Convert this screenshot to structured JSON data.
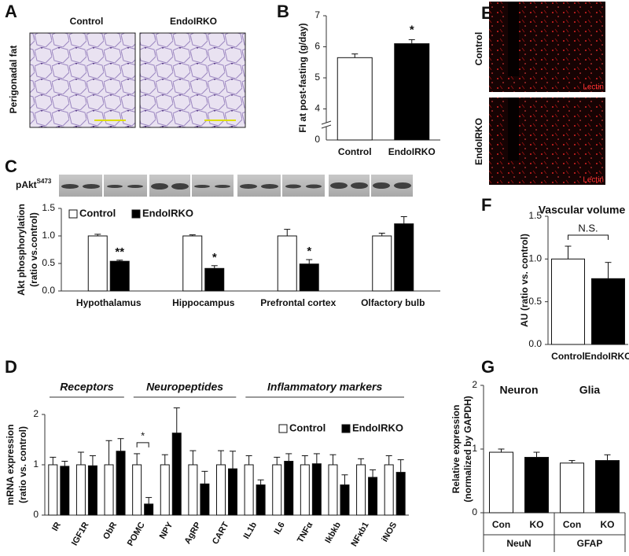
{
  "image_panels": [
    {
      "panel": "A",
      "column_labels": [
        "Control",
        "EndoIRKO"
      ],
      "row_label": "Perigonadal fat"
    },
    {
      "panel": "E",
      "row_labels": [
        "Control",
        "EndoIRKO"
      ],
      "stain": "Lectin"
    }
  ],
  "chart_data": [
    {
      "type": "bar",
      "panel": "B",
      "ylabel": [
        "FI at post-fasting (g/day)"
      ],
      "categories": [
        "Control",
        "EndoIRKO"
      ],
      "values": [
        5.65,
        6.1
      ],
      "errors": [
        0.12,
        0.13
      ],
      "colors": [
        "#ffffff",
        "#000000"
      ],
      "significance": [
        null,
        "*"
      ],
      "ylim": [
        3,
        7
      ],
      "yticks": [
        4,
        5,
        6,
        7
      ],
      "ybreak_tick": 0
    },
    {
      "type": "bar",
      "panel": "C",
      "blot_label": "pAkt",
      "blot_label_sup": "S473",
      "ylabel": [
        "Akt phosphorylation",
        "(ratio vs.control)"
      ],
      "categories": [
        "Hypothalamus",
        "Hippocampus",
        "Prefrontal cortex",
        "Olfactory bulb"
      ],
      "series": [
        {
          "name": "Control",
          "color": "#ffffff",
          "values": [
            1.0,
            1.0,
            1.0,
            1.0
          ],
          "errors": [
            0.03,
            0.02,
            0.12,
            0.05
          ]
        },
        {
          "name": "EndoIRKO",
          "color": "#000000",
          "values": [
            0.54,
            0.41,
            0.49,
            1.22
          ],
          "errors": [
            0.02,
            0.05,
            0.08,
            0.13
          ],
          "significance": [
            "**",
            "*",
            "*",
            null
          ]
        }
      ],
      "ylim": [
        0,
        1.5
      ],
      "yticks": [
        {
          "value": 0,
          "label": "0.0"
        },
        0.5,
        {
          "value": 1,
          "label": "1.0"
        },
        1.5
      ]
    },
    {
      "type": "bar",
      "panel": "F",
      "title": "Vascular volume",
      "ylabel": [
        "AU (ratio vs. control)"
      ],
      "categories": [
        "Control",
        "EndoIRKO"
      ],
      "values": [
        1.0,
        0.77
      ],
      "errors": [
        0.15,
        0.19
      ],
      "colors": [
        "#ffffff",
        "#000000"
      ],
      "comparison": {
        "label": "N.S."
      },
      "ylim": [
        0,
        1.5
      ],
      "yticks": [
        {
          "value": 0,
          "label": "0.0"
        },
        0.5,
        {
          "value": 1,
          "label": "1.0"
        },
        1.5
      ]
    },
    {
      "type": "bar",
      "panel": "D",
      "ylabel": [
        "mRNA expression",
        "(ratio vs. control)"
      ],
      "category_groups": [
        "Receptors",
        "Neuropeptides",
        "Inflammatory markers"
      ],
      "categories": [
        "IR",
        "IGF1R",
        "ObR",
        "POMC",
        "NPY",
        "AgRP",
        "CART",
        "IL1b",
        "IL6",
        "TNFα",
        "Ikbkb",
        "NFκb1",
        "iNOS"
      ],
      "series": [
        {
          "name": "Control",
          "color": "#ffffff",
          "values": [
            1,
            1,
            1,
            1,
            1,
            1,
            1,
            1,
            1,
            1,
            1,
            1,
            1
          ],
          "errors": [
            0.15,
            0.25,
            0.48,
            0.22,
            0.2,
            0.28,
            0.28,
            0.18,
            0.15,
            0.18,
            0.2,
            0.12,
            0.18
          ]
        },
        {
          "name": "EndoIRKO",
          "color": "#000000",
          "values": [
            0.97,
            0.98,
            1.27,
            0.22,
            1.63,
            0.62,
            0.92,
            0.6,
            1.07,
            1.02,
            0.6,
            0.75,
            0.85
          ],
          "errors": [
            0.1,
            0.2,
            0.25,
            0.13,
            0.5,
            0.25,
            0.35,
            0.1,
            0.15,
            0.2,
            0.2,
            0.15,
            0.25
          ]
        }
      ],
      "comparison": {
        "category": "POMC",
        "label": "*"
      },
      "ylim": [
        0,
        2
      ],
      "yticks": [
        0,
        1,
        2
      ]
    },
    {
      "type": "bar",
      "panel": "G",
      "ylabel": [
        "Relative expression",
        "(normalized by GAPDH)"
      ],
      "group_titles": [
        "Neuron",
        "Glia"
      ],
      "category_groups": [
        "NeuN",
        "GFAP"
      ],
      "categories": [
        "Con",
        "KO",
        "Con",
        "KO"
      ],
      "values": [
        0.95,
        0.87,
        0.78,
        0.82
      ],
      "errors": [
        0.05,
        0.08,
        0.04,
        0.09
      ],
      "colors": [
        "#ffffff",
        "#000000",
        "#ffffff",
        "#000000"
      ],
      "ylim": [
        0,
        2
      ],
      "yticks": [
        0,
        1,
        2
      ]
    }
  ]
}
